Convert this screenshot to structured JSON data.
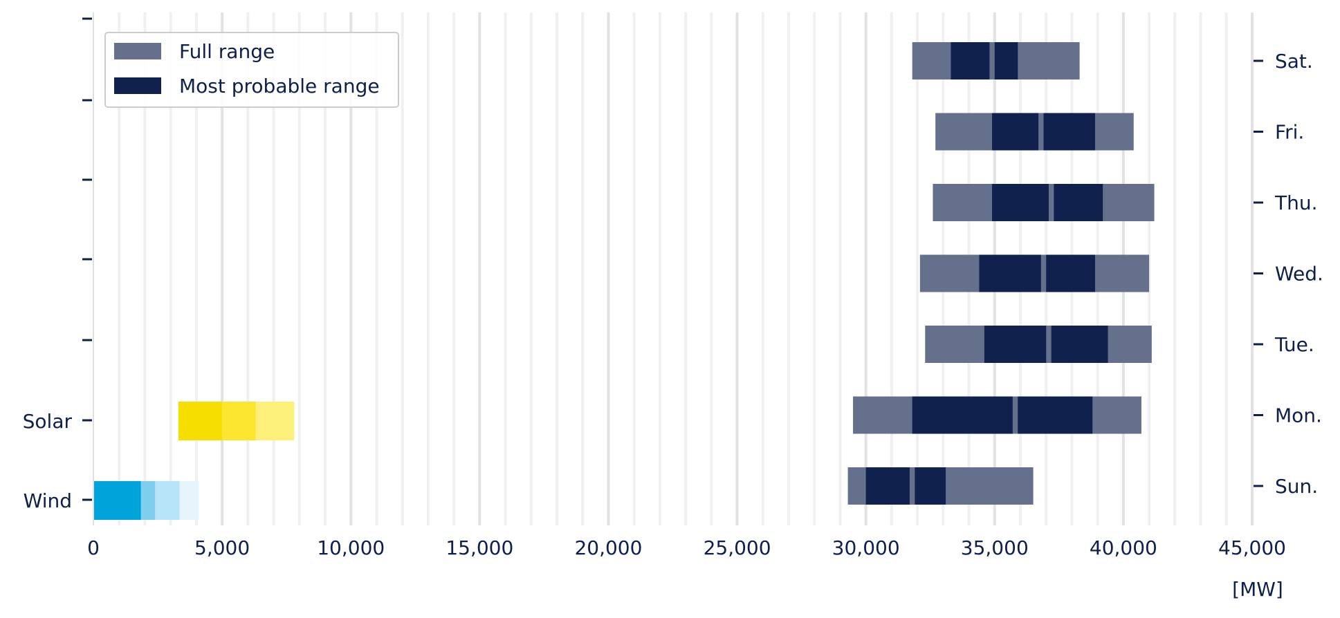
{
  "chart_data": {
    "type": "bar",
    "unit_label": "[MW]",
    "xlim": [
      0,
      45000
    ],
    "x_ticks": [
      0,
      5000,
      10000,
      15000,
      20000,
      25000,
      30000,
      35000,
      40000,
      45000
    ],
    "x_tick_labels": [
      "0",
      "5,000",
      "10,000",
      "15,000",
      "20,000",
      "25,000",
      "30,000",
      "35,000",
      "40,000",
      "45,000"
    ],
    "grid": true,
    "legend_position": "top-left",
    "legend": [
      {
        "label": "Full range",
        "color": "#64708c"
      },
      {
        "label": "Most probable range",
        "color": "#11214d"
      }
    ],
    "colors": {
      "full_range": "#64708c",
      "most_probable": "#11214d",
      "text": "#0f1f4b",
      "solar": [
        "#f5de00",
        "#fce52f",
        "#fdf07a"
      ],
      "wind": [
        "#00a3da",
        "#7ecfee",
        "#b7e4f6",
        "#e6f5fc"
      ]
    },
    "days": [
      {
        "label": "Sat.",
        "full": [
          31800,
          38300
        ],
        "probable": [
          [
            33300,
            34800
          ],
          [
            35000,
            35900
          ]
        ]
      },
      {
        "label": "Fri.",
        "full": [
          32700,
          40400
        ],
        "probable": [
          [
            34900,
            36700
          ],
          [
            36900,
            38900
          ]
        ]
      },
      {
        "label": "Thu.",
        "full": [
          32600,
          41200
        ],
        "probable": [
          [
            34900,
            37100
          ],
          [
            37300,
            39200
          ]
        ]
      },
      {
        "label": "Wed.",
        "full": [
          32100,
          41000
        ],
        "probable": [
          [
            34400,
            36800
          ],
          [
            37000,
            38900
          ]
        ]
      },
      {
        "label": "Tue.",
        "full": [
          32300,
          41100
        ],
        "probable": [
          [
            34600,
            37000
          ],
          [
            37200,
            39400
          ]
        ]
      },
      {
        "label": "Mon.",
        "full": [
          29500,
          40700
        ],
        "probable": [
          [
            31800,
            35700
          ],
          [
            35900,
            38800
          ]
        ]
      },
      {
        "label": "Sun.",
        "full": [
          29300,
          36500
        ],
        "probable": [
          [
            30000,
            31700
          ],
          [
            31900,
            33100
          ]
        ]
      }
    ],
    "renewables": [
      {
        "label": "Solar",
        "segments": [
          [
            3300,
            5000
          ],
          [
            5000,
            6300
          ],
          [
            6300,
            7800
          ]
        ]
      },
      {
        "label": "Wind",
        "segments": [
          [
            0,
            1850
          ],
          [
            1850,
            2400
          ],
          [
            2400,
            3350
          ],
          [
            3350,
            4100
          ]
        ]
      }
    ]
  }
}
